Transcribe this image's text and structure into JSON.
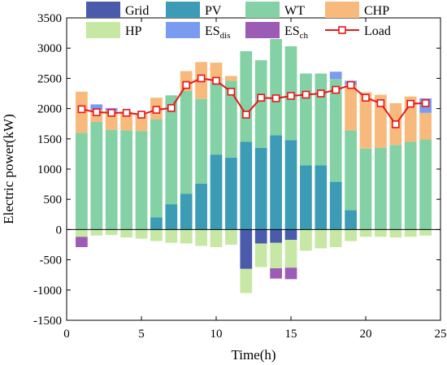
{
  "chart_data": {
    "type": "bar",
    "subtype": "stacked",
    "xlabel": "Time(h)",
    "ylabel": "Electric power(kW)",
    "xlim": [
      0,
      25
    ],
    "ylim": [
      -1500,
      3500
    ],
    "xticks": [
      0,
      5,
      10,
      15,
      20,
      25
    ],
    "yticks": [
      -1500,
      -1000,
      -500,
      0,
      500,
      1000,
      1500,
      2000,
      2500,
      3000,
      3500
    ],
    "grid": false,
    "legend_position": "top",
    "x": [
      1,
      2,
      3,
      4,
      5,
      6,
      7,
      8,
      9,
      10,
      11,
      12,
      13,
      14,
      15,
      16,
      17,
      18,
      19,
      20,
      21,
      22,
      23,
      24
    ],
    "series": [
      {
        "name": "Grid",
        "subscript": "",
        "color": "#4a5bab",
        "kind": "bar",
        "values": [
          0,
          0,
          0,
          0,
          0,
          0,
          0,
          0,
          0,
          0,
          0,
          -650,
          -230,
          -220,
          -170,
          0,
          0,
          0,
          0,
          0,
          0,
          0,
          0,
          0
        ]
      },
      {
        "name": "PV",
        "subscript": "",
        "color": "#3c9bb5",
        "kind": "bar",
        "values": [
          0,
          0,
          0,
          0,
          0,
          200,
          420,
          590,
          760,
          1240,
          1190,
          1450,
          1350,
          1560,
          1480,
          1060,
          1060,
          790,
          320,
          0,
          0,
          0,
          0,
          0
        ]
      },
      {
        "name": "WT",
        "subscript": "",
        "color": "#83d1a4",
        "kind": "bar",
        "values": [
          1600,
          1780,
          1650,
          1640,
          1630,
          1620,
          1800,
          1700,
          1400,
          1200,
          1270,
          1500,
          1450,
          1590,
          1550,
          1520,
          1520,
          1700,
          1320,
          1340,
          1350,
          1400,
          1450,
          1490
        ]
      },
      {
        "name": "CHP",
        "subscript": "",
        "color": "#f8ba7c",
        "kind": "bar",
        "values": [
          680,
          200,
          310,
          310,
          280,
          360,
          0,
          330,
          610,
          320,
          80,
          0,
          0,
          0,
          0,
          0,
          0,
          0,
          750,
          930,
          880,
          690,
          750,
          440
        ]
      },
      {
        "name": "HP",
        "subscript": "",
        "color": "#c6e8a4",
        "kind": "bar",
        "values": [
          -120,
          -100,
          -90,
          -130,
          -150,
          -190,
          -220,
          -230,
          -270,
          -290,
          -250,
          -400,
          -390,
          -420,
          -460,
          -350,
          -310,
          -290,
          -190,
          -120,
          -120,
          -130,
          -120,
          -100
        ]
      },
      {
        "name": "ES",
        "subscript": "dis",
        "color": "#7a9bef",
        "kind": "bar",
        "values": [
          0,
          90,
          50,
          0,
          0,
          0,
          0,
          0,
          0,
          0,
          0,
          0,
          0,
          0,
          0,
          0,
          0,
          120,
          70,
          0,
          0,
          0,
          0,
          240
        ]
      },
      {
        "name": "ES",
        "subscript": "ch",
        "color": "#9c5bb5",
        "kind": "bar",
        "values": [
          -170,
          0,
          0,
          0,
          0,
          0,
          0,
          0,
          0,
          0,
          0,
          0,
          0,
          -170,
          -190,
          0,
          0,
          0,
          0,
          0,
          0,
          0,
          0,
          0
        ]
      },
      {
        "name": "Load",
        "subscript": "",
        "color": "#e8161b",
        "kind": "line",
        "values": [
          1990,
          1940,
          1930,
          1930,
          1900,
          1980,
          2010,
          2390,
          2500,
          2460,
          2280,
          1900,
          2180,
          2170,
          2210,
          2230,
          2250,
          2310,
          2390,
          2180,
          2090,
          1740,
          2080,
          2090
        ]
      }
    ]
  }
}
